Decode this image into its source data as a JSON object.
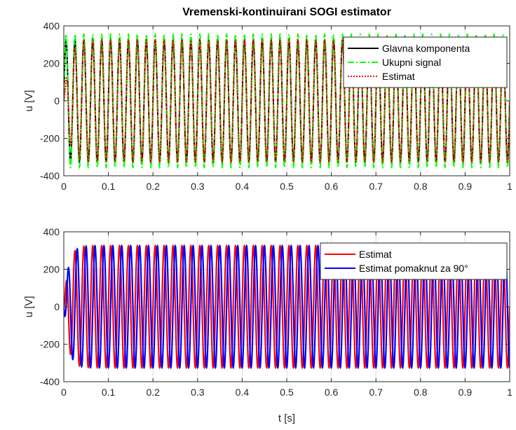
{
  "figure": {
    "background": "#ffffff"
  },
  "chart_data": [
    {
      "type": "line",
      "title": "Vremenski-kontinuirani SOGI estimator",
      "xlabel": "",
      "ylabel": "u [V]",
      "xlim": [
        0,
        1
      ],
      "ylim": [
        -400,
        400
      ],
      "xticks": [
        0,
        0.1,
        0.2,
        0.3,
        0.4,
        0.5,
        0.6,
        0.7,
        0.8,
        0.9,
        1
      ],
      "yticks": [
        -400,
        -200,
        0,
        200,
        400
      ],
      "xtick_labels": [
        "0",
        "0.1",
        "0.2",
        "0.3",
        "0.4",
        "0.5",
        "0.6",
        "0.7",
        "0.8",
        "0.9",
        "1"
      ],
      "ytick_labels": [
        "-400",
        "-200",
        "0",
        "200",
        "400"
      ],
      "grid": true,
      "legend_position": "top-right",
      "frequency_hz": 50,
      "series": [
        {
          "name": "Glavna komponenta",
          "color": "#000000",
          "style": "solid",
          "amplitude": 325,
          "phase": "sin"
        },
        {
          "name": "Ukupni signal",
          "color": "#00ff00",
          "style": "dashdot",
          "amplitude": 355,
          "phase": "sin"
        },
        {
          "name": "Estimat",
          "color": "#ff0000",
          "style": "dotted",
          "amplitude": 325,
          "phase": "sin"
        }
      ]
    },
    {
      "type": "line",
      "title": "",
      "xlabel": "t [s]",
      "ylabel": "u [V]",
      "xlim": [
        0,
        1
      ],
      "ylim": [
        -400,
        400
      ],
      "xticks": [
        0,
        0.1,
        0.2,
        0.3,
        0.4,
        0.5,
        0.6,
        0.7,
        0.8,
        0.9,
        1
      ],
      "yticks": [
        -400,
        -200,
        0,
        200,
        400
      ],
      "xtick_labels": [
        "0",
        "0.1",
        "0.2",
        "0.3",
        "0.4",
        "0.5",
        "0.6",
        "0.7",
        "0.8",
        "0.9",
        "1"
      ],
      "ytick_labels": [
        "-400",
        "-200",
        "0",
        "200",
        "400"
      ],
      "grid": true,
      "legend_position": "top-right",
      "frequency_hz": 50,
      "series": [
        {
          "name": "Estimat",
          "color": "#ff0000",
          "style": "solid",
          "amplitude": 325,
          "phase": "sin"
        },
        {
          "name": "Estimat pomaknut za 90°",
          "color": "#0000ff",
          "style": "solid",
          "amplitude": 325,
          "phase": "-cos"
        }
      ]
    }
  ]
}
